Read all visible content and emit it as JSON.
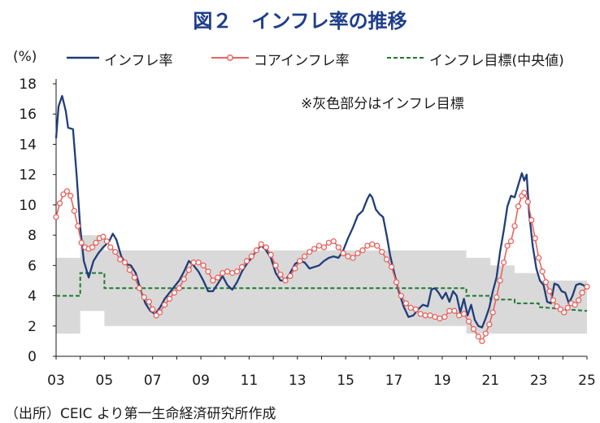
{
  "title": "図２　インフレ率の推移",
  "source": "（出所）CEIC より第一生命経済研究所作成",
  "chart_data": {
    "type": "line",
    "title": "図２　インフレ率の推移",
    "ylabel": "(%)",
    "xlabel": "",
    "ylim": [
      0,
      18
    ],
    "yticks": [
      0,
      2,
      4,
      6,
      8,
      10,
      12,
      14,
      16,
      18
    ],
    "xlim": [
      2003,
      2025
    ],
    "xticks": [
      2003,
      2005,
      2007,
      2009,
      2011,
      2013,
      2015,
      2017,
      2019,
      2021,
      2023,
      2025
    ],
    "xtick_labels": [
      "03",
      "05",
      "07",
      "09",
      "11",
      "13",
      "15",
      "17",
      "19",
      "21",
      "23",
      "25"
    ],
    "grid": false,
    "legend_position": "top",
    "annotation": "※灰色部分はインフレ目標",
    "colors": {
      "headline": "#1f3d7a",
      "core": "#e8635e",
      "target": "#1f7a2e",
      "band": "#d9d9d9"
    },
    "series": [
      {
        "name": "インフレ率",
        "style": "solid",
        "points": [
          [
            2003.0,
            14.4
          ],
          [
            2003.1,
            16.5
          ],
          [
            2003.25,
            17.2
          ],
          [
            2003.4,
            16.2
          ],
          [
            2003.5,
            15.1
          ],
          [
            2003.7,
            15.0
          ],
          [
            2003.85,
            12.0
          ],
          [
            2004.0,
            8.5
          ],
          [
            2004.15,
            6.3
          ],
          [
            2004.35,
            5.2
          ],
          [
            2004.55,
            6.3
          ],
          [
            2004.75,
            6.8
          ],
          [
            2004.95,
            7.2
          ],
          [
            2005.2,
            7.6
          ],
          [
            2005.35,
            8.1
          ],
          [
            2005.5,
            7.7
          ],
          [
            2005.7,
            6.6
          ],
          [
            2005.9,
            6.1
          ],
          [
            2006.1,
            6.0
          ],
          [
            2006.3,
            5.5
          ],
          [
            2006.5,
            4.4
          ],
          [
            2006.7,
            3.5
          ],
          [
            2006.9,
            3.0
          ],
          [
            2007.1,
            2.8
          ],
          [
            2007.3,
            3.2
          ],
          [
            2007.5,
            3.8
          ],
          [
            2007.7,
            4.2
          ],
          [
            2007.9,
            4.6
          ],
          [
            2008.1,
            5.0
          ],
          [
            2008.3,
            5.6
          ],
          [
            2008.5,
            6.3
          ],
          [
            2008.7,
            6.0
          ],
          [
            2008.9,
            5.6
          ],
          [
            2009.1,
            5.0
          ],
          [
            2009.3,
            4.3
          ],
          [
            2009.5,
            4.3
          ],
          [
            2009.7,
            4.8
          ],
          [
            2009.9,
            5.3
          ],
          [
            2010.1,
            4.7
          ],
          [
            2010.3,
            4.4
          ],
          [
            2010.5,
            4.9
          ],
          [
            2010.7,
            5.6
          ],
          [
            2010.9,
            6.1
          ],
          [
            2011.1,
            6.5
          ],
          [
            2011.3,
            7.0
          ],
          [
            2011.5,
            7.3
          ],
          [
            2011.7,
            7.0
          ],
          [
            2011.9,
            6.5
          ],
          [
            2012.1,
            5.5
          ],
          [
            2012.3,
            5.0
          ],
          [
            2012.5,
            5.0
          ],
          [
            2012.7,
            5.5
          ],
          [
            2012.9,
            6.1
          ],
          [
            2013.1,
            6.3
          ],
          [
            2013.3,
            6.2
          ],
          [
            2013.5,
            5.8
          ],
          [
            2013.7,
            5.9
          ],
          [
            2013.9,
            6.0
          ],
          [
            2014.1,
            6.3
          ],
          [
            2014.3,
            6.5
          ],
          [
            2014.5,
            6.6
          ],
          [
            2014.7,
            6.5
          ],
          [
            2014.9,
            7.0
          ],
          [
            2015.1,
            7.8
          ],
          [
            2015.3,
            8.5
          ],
          [
            2015.5,
            9.3
          ],
          [
            2015.7,
            9.6
          ],
          [
            2015.9,
            10.4
          ],
          [
            2016.0,
            10.7
          ],
          [
            2016.1,
            10.5
          ],
          [
            2016.25,
            9.7
          ],
          [
            2016.4,
            9.4
          ],
          [
            2016.55,
            9.2
          ],
          [
            2016.7,
            8.0
          ],
          [
            2016.85,
            6.6
          ],
          [
            2017.0,
            5.6
          ],
          [
            2017.2,
            4.3
          ],
          [
            2017.4,
            3.3
          ],
          [
            2017.6,
            2.6
          ],
          [
            2017.8,
            2.7
          ],
          [
            2018.0,
            3.1
          ],
          [
            2018.2,
            3.4
          ],
          [
            2018.4,
            3.3
          ],
          [
            2018.55,
            4.4
          ],
          [
            2018.7,
            4.5
          ],
          [
            2018.85,
            4.2
          ],
          [
            2019.0,
            3.8
          ],
          [
            2019.15,
            4.2
          ],
          [
            2019.3,
            3.6
          ],
          [
            2019.45,
            4.3
          ],
          [
            2019.6,
            4.0
          ],
          [
            2019.75,
            2.9
          ],
          [
            2019.9,
            3.8
          ],
          [
            2020.05,
            2.7
          ],
          [
            2020.2,
            3.4
          ],
          [
            2020.35,
            2.4
          ],
          [
            2020.5,
            2.0
          ],
          [
            2020.65,
            1.9
          ],
          [
            2020.8,
            2.5
          ],
          [
            2020.95,
            3.2
          ],
          [
            2021.1,
            4.3
          ],
          [
            2021.25,
            5.2
          ],
          [
            2021.4,
            6.9
          ],
          [
            2021.55,
            8.3
          ],
          [
            2021.7,
            9.9
          ],
          [
            2021.85,
            10.6
          ],
          [
            2022.0,
            10.5
          ],
          [
            2022.15,
            11.3
          ],
          [
            2022.3,
            12.1
          ],
          [
            2022.4,
            11.6
          ],
          [
            2022.5,
            12.0
          ],
          [
            2022.6,
            9.5
          ],
          [
            2022.75,
            7.3
          ],
          [
            2022.9,
            5.8
          ],
          [
            2023.05,
            5.0
          ],
          [
            2023.2,
            4.7
          ],
          [
            2023.35,
            3.6
          ],
          [
            2023.5,
            3.5
          ],
          [
            2023.65,
            4.8
          ],
          [
            2023.8,
            4.7
          ],
          [
            2023.95,
            4.3
          ],
          [
            2024.1,
            4.2
          ],
          [
            2024.25,
            3.5
          ],
          [
            2024.4,
            4.0
          ],
          [
            2024.55,
            4.7
          ],
          [
            2024.7,
            4.8
          ],
          [
            2024.85,
            4.7
          ],
          [
            2025.0,
            4.5
          ]
        ]
      },
      {
        "name": "コアインフレ率",
        "style": "line-with-circle-markers",
        "points": [
          [
            2003.0,
            9.2
          ],
          [
            2003.15,
            10.1
          ],
          [
            2003.3,
            10.7
          ],
          [
            2003.45,
            10.9
          ],
          [
            2003.6,
            10.6
          ],
          [
            2003.75,
            9.6
          ],
          [
            2003.9,
            8.6
          ],
          [
            2004.05,
            7.5
          ],
          [
            2004.2,
            7.2
          ],
          [
            2004.35,
            7.1
          ],
          [
            2004.5,
            7.2
          ],
          [
            2004.65,
            7.5
          ],
          [
            2004.8,
            7.8
          ],
          [
            2004.95,
            7.9
          ],
          [
            2005.1,
            7.6
          ],
          [
            2005.25,
            7.2
          ],
          [
            2005.45,
            6.9
          ],
          [
            2005.65,
            6.4
          ],
          [
            2005.85,
            6.2
          ],
          [
            2006.05,
            5.7
          ],
          [
            2006.25,
            5.2
          ],
          [
            2006.45,
            4.5
          ],
          [
            2006.65,
            3.9
          ],
          [
            2006.85,
            3.6
          ],
          [
            2007.0,
            3.1
          ],
          [
            2007.15,
            2.7
          ],
          [
            2007.3,
            2.9
          ],
          [
            2007.5,
            3.4
          ],
          [
            2007.7,
            3.8
          ],
          [
            2007.9,
            4.2
          ],
          [
            2008.1,
            4.5
          ],
          [
            2008.3,
            5.1
          ],
          [
            2008.5,
            5.7
          ],
          [
            2008.7,
            6.2
          ],
          [
            2008.9,
            6.2
          ],
          [
            2009.1,
            6.0
          ],
          [
            2009.3,
            5.6
          ],
          [
            2009.5,
            5.0
          ],
          [
            2009.7,
            5.2
          ],
          [
            2009.9,
            5.5
          ],
          [
            2010.1,
            5.6
          ],
          [
            2010.3,
            5.5
          ],
          [
            2010.5,
            5.6
          ],
          [
            2010.7,
            5.9
          ],
          [
            2010.9,
            6.3
          ],
          [
            2011.1,
            6.6
          ],
          [
            2011.3,
            7.0
          ],
          [
            2011.5,
            7.4
          ],
          [
            2011.7,
            7.2
          ],
          [
            2011.9,
            6.7
          ],
          [
            2012.1,
            6.0
          ],
          [
            2012.3,
            5.4
          ],
          [
            2012.5,
            5.0
          ],
          [
            2012.7,
            5.3
          ],
          [
            2012.9,
            5.8
          ],
          [
            2013.1,
            6.3
          ],
          [
            2013.3,
            6.6
          ],
          [
            2013.5,
            6.9
          ],
          [
            2013.7,
            7.1
          ],
          [
            2013.9,
            7.3
          ],
          [
            2014.1,
            7.2
          ],
          [
            2014.3,
            7.5
          ],
          [
            2014.5,
            7.6
          ],
          [
            2014.7,
            7.2
          ],
          [
            2014.9,
            6.8
          ],
          [
            2015.1,
            6.6
          ],
          [
            2015.3,
            6.5
          ],
          [
            2015.5,
            6.8
          ],
          [
            2015.7,
            7.0
          ],
          [
            2015.9,
            7.3
          ],
          [
            2016.1,
            7.4
          ],
          [
            2016.3,
            7.3
          ],
          [
            2016.5,
            6.9
          ],
          [
            2016.7,
            6.4
          ],
          [
            2016.9,
            5.9
          ],
          [
            2017.1,
            4.9
          ],
          [
            2017.3,
            4.0
          ],
          [
            2017.5,
            3.5
          ],
          [
            2017.7,
            3.2
          ],
          [
            2017.9,
            3.1
          ],
          [
            2018.1,
            2.8
          ],
          [
            2018.3,
            2.7
          ],
          [
            2018.5,
            2.7
          ],
          [
            2018.7,
            2.6
          ],
          [
            2018.9,
            2.5
          ],
          [
            2019.1,
            2.6
          ],
          [
            2019.3,
            3.0
          ],
          [
            2019.5,
            3.0
          ],
          [
            2019.7,
            2.7
          ],
          [
            2019.9,
            2.8
          ],
          [
            2020.1,
            2.3
          ],
          [
            2020.3,
            1.8
          ],
          [
            2020.5,
            1.3
          ],
          [
            2020.65,
            1.0
          ],
          [
            2020.8,
            1.5
          ],
          [
            2020.95,
            2.1
          ],
          [
            2021.1,
            2.9
          ],
          [
            2021.25,
            3.9
          ],
          [
            2021.4,
            5.0
          ],
          [
            2021.55,
            6.2
          ],
          [
            2021.7,
            7.3
          ],
          [
            2021.85,
            7.6
          ],
          [
            2022.0,
            8.6
          ],
          [
            2022.15,
            9.9
          ],
          [
            2022.3,
            10.6
          ],
          [
            2022.4,
            10.8
          ],
          [
            2022.55,
            10.2
          ],
          [
            2022.7,
            9.0
          ],
          [
            2022.85,
            7.8
          ],
          [
            2023.0,
            6.5
          ],
          [
            2023.15,
            5.6
          ],
          [
            2023.3,
            4.9
          ],
          [
            2023.45,
            4.3
          ],
          [
            2023.6,
            3.7
          ],
          [
            2023.75,
            3.3
          ],
          [
            2023.9,
            3.1
          ],
          [
            2024.05,
            2.9
          ],
          [
            2024.2,
            3.2
          ],
          [
            2024.35,
            3.5
          ],
          [
            2024.5,
            3.4
          ],
          [
            2024.65,
            3.7
          ],
          [
            2024.8,
            4.2
          ],
          [
            2025.0,
            4.6
          ]
        ]
      },
      {
        "name": "インフレ目標(中央値)",
        "style": "dashed",
        "points": [
          [
            2003.0,
            4.0
          ],
          [
            2004.0,
            4.0
          ],
          [
            2004.0,
            5.5
          ],
          [
            2005.0,
            5.5
          ],
          [
            2005.0,
            4.5
          ],
          [
            2020.0,
            4.5
          ],
          [
            2020.0,
            4.0
          ],
          [
            2021.0,
            4.0
          ],
          [
            2021.0,
            3.75
          ],
          [
            2022.0,
            3.75
          ],
          [
            2022.0,
            3.5
          ],
          [
            2023.0,
            3.5
          ],
          [
            2023.0,
            3.25
          ],
          [
            2025.0,
            3.0
          ]
        ]
      }
    ],
    "target_band": {
      "name": "インフレ目標",
      "points": [
        [
          2003.0,
          1.5,
          6.5
        ],
        [
          2004.0,
          1.5,
          6.5
        ],
        [
          2004.0,
          3.0,
          8.0
        ],
        [
          2005.0,
          3.0,
          8.0
        ],
        [
          2005.0,
          2.0,
          7.0
        ],
        [
          2020.0,
          2.0,
          7.0
        ],
        [
          2020.0,
          1.5,
          6.5
        ],
        [
          2021.0,
          1.5,
          6.5
        ],
        [
          2021.0,
          1.5,
          6.0
        ],
        [
          2022.0,
          1.5,
          6.0
        ],
        [
          2022.0,
          1.5,
          5.5
        ],
        [
          2023.0,
          1.5,
          5.5
        ],
        [
          2023.0,
          1.5,
          5.0
        ],
        [
          2025.0,
          1.5,
          5.0
        ]
      ]
    }
  }
}
